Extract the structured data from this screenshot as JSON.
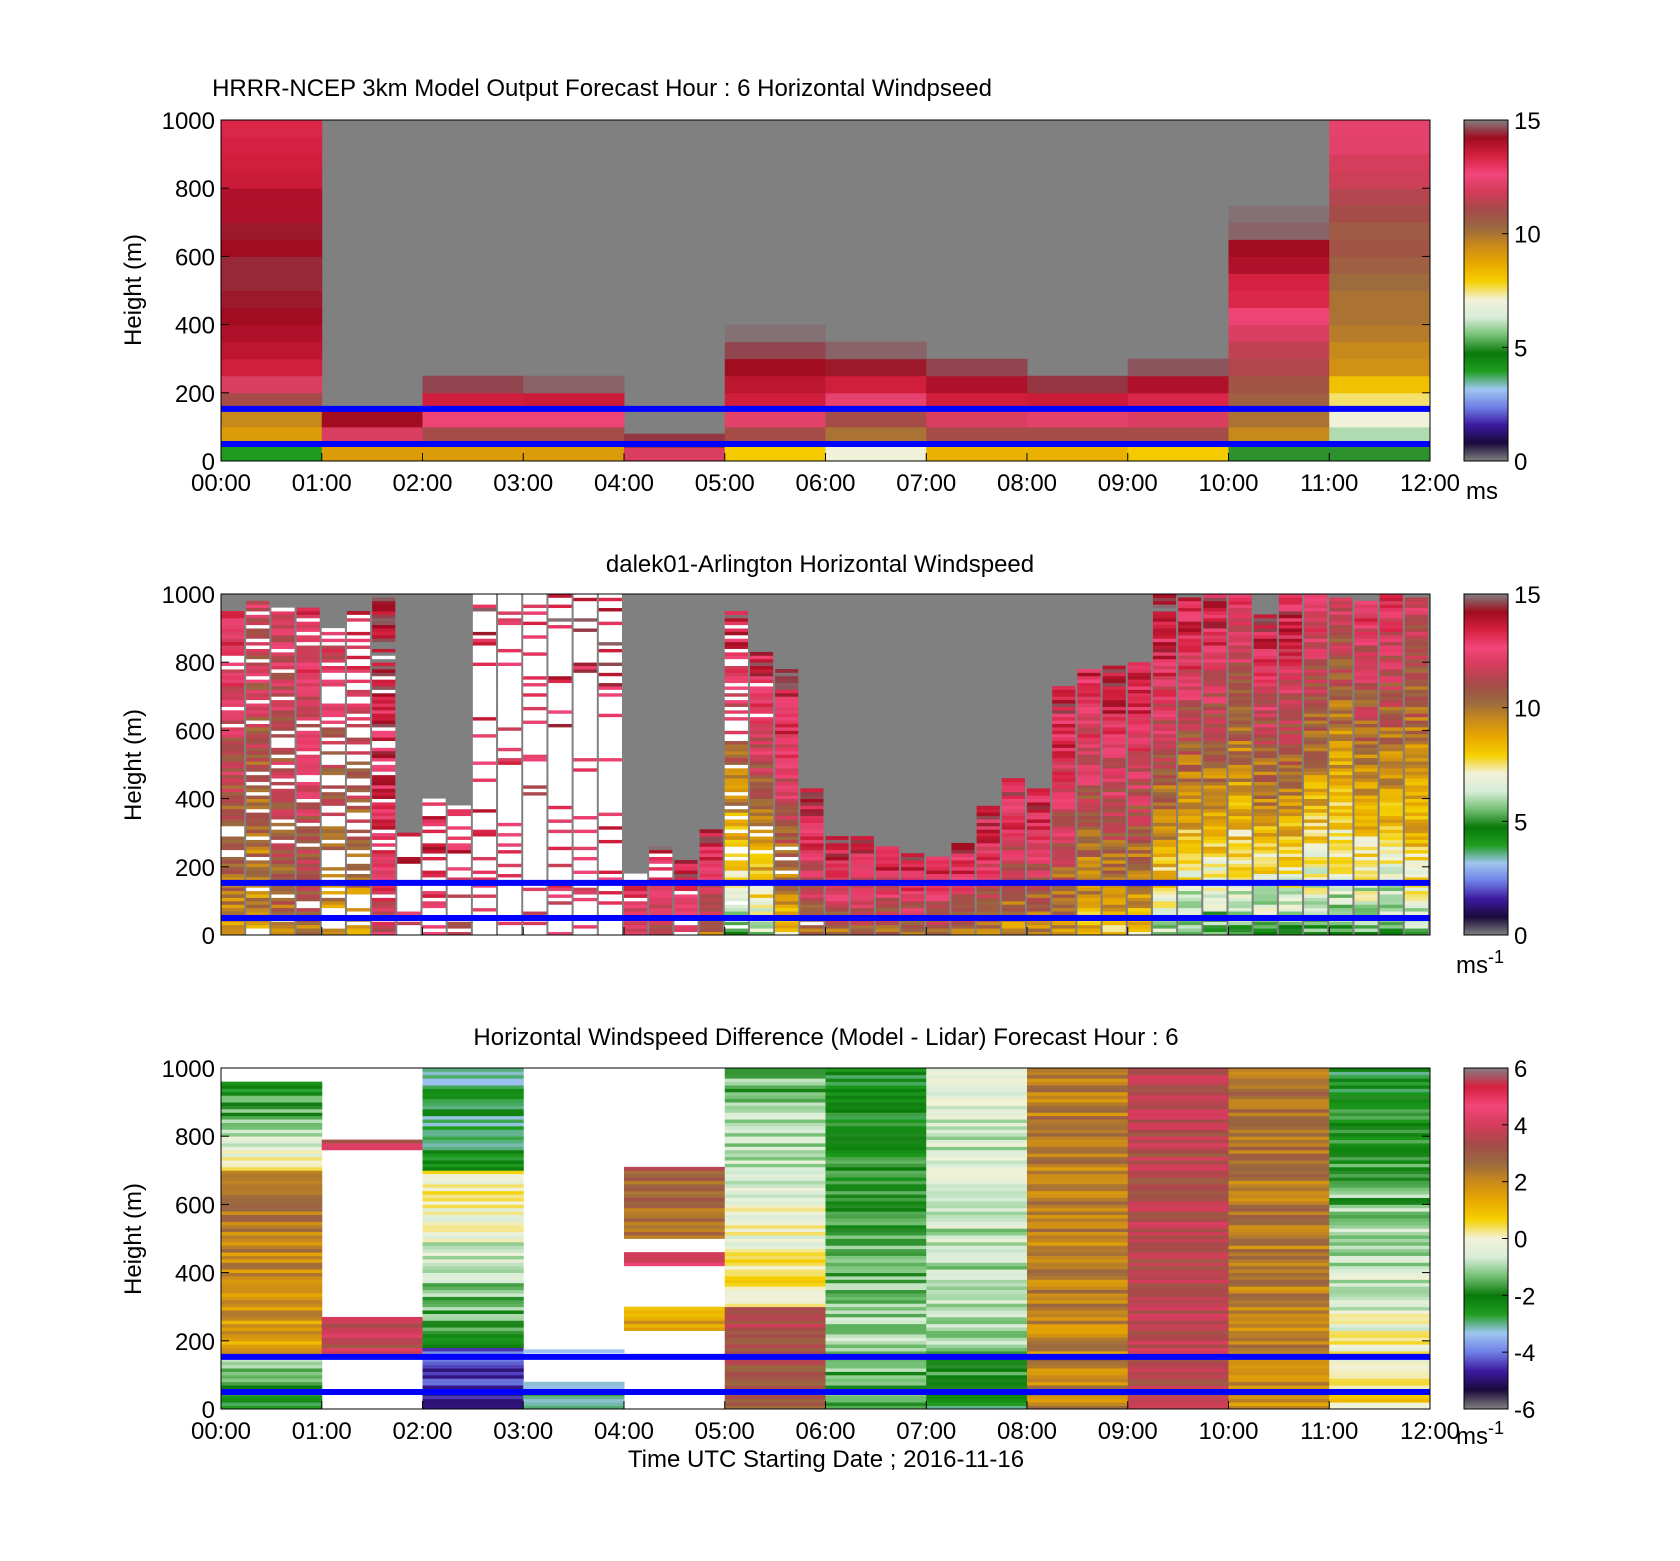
{
  "figure": {
    "xlabel": "Time UTC  Starting Date ; 2016-11-16"
  },
  "colors": {
    "missing": "#808080",
    "no_data": "#ffffff",
    "reference_lines": "#0000ff",
    "speed_scale": [
      "#808080",
      "#1a0a3c",
      "#3c1aa0",
      "#6f7fe6",
      "#9fc6f0",
      "#1f9d1f",
      "#0a7a0a",
      "#74c074",
      "#d8edd8",
      "#f2f2d8",
      "#f5d000",
      "#e8a800",
      "#c98a1a",
      "#9a6840",
      "#a64a4a",
      "#d43c5a",
      "#f2467a",
      "#d62040",
      "#a00c20",
      "#808080"
    ],
    "diff_scale": [
      "#808080",
      "#1a0a3c",
      "#3c1aa0",
      "#6f7fe6",
      "#9fc6f0",
      "#1f9d1f",
      "#0a7a0a",
      "#74c074",
      "#d8edd8",
      "#f2f2d8",
      "#f5d000",
      "#e8a800",
      "#c98a1a",
      "#9a6840",
      "#a64a4a",
      "#d43c5a",
      "#f2467a",
      "#d62040",
      "#808080"
    ]
  },
  "chart_data": [
    {
      "type": "heatmap",
      "title": "HRRR-NCEP 3km Model Output   Forecast Hour : 6 Horizontal Windpseed",
      "ylabel": "Height (m)",
      "x_ticks": [
        "00:00",
        "01:00",
        "02:00",
        "03:00",
        "04:00",
        "05:00",
        "06:00",
        "07:00",
        "08:00",
        "09:00",
        "10:00",
        "11:00",
        "12:00"
      ],
      "x_range_hours": [
        0,
        12
      ],
      "y_ticks": [
        0,
        200,
        400,
        600,
        800,
        1000
      ],
      "ylim": [
        0,
        1000
      ],
      "colorbar": {
        "range": [
          0,
          15
        ],
        "ticks": [
          0,
          5,
          10,
          15
        ],
        "unit": "ms",
        "unit_sup": ""
      },
      "reference_lines_height_m": [
        50,
        153
      ],
      "columns_note": "hourly columns; top_m = highest valid level, speeds listed bottom-to-top in 50 m layers (m/s)",
      "columns": [
        {
          "hour": 0,
          "top_m": 1000,
          "speeds": [
            4,
            9,
            9.5,
            11,
            12,
            13.5,
            13.8,
            14,
            14.2,
            14.3,
            14.4,
            14.4,
            14.2,
            14.3,
            14,
            14,
            13.6,
            13.5,
            13.4,
            13.3
          ]
        },
        {
          "hour": 1,
          "top_m": 150,
          "speeds": [
            9,
            12,
            14.2
          ]
        },
        {
          "hour": 2,
          "top_m": 250,
          "speeds": [
            9,
            11,
            12.5,
            13.5,
            14.6
          ]
        },
        {
          "hour": 3,
          "top_m": 250,
          "speeds": [
            9,
            11,
            12.5,
            13.6,
            14.8
          ]
        },
        {
          "hour": 4,
          "top_m": 80,
          "speeds": [
            12,
            14.5
          ]
        },
        {
          "hour": 5,
          "top_m": 400,
          "speeds": [
            8,
            11,
            12.2,
            13.5,
            13.8,
            14.2,
            14.6,
            14.9
          ]
        },
        {
          "hour": 6,
          "top_m": 350,
          "speeds": [
            7,
            10,
            11,
            12.3,
            13.5,
            14.3,
            14.8
          ]
        },
        {
          "hour": 7,
          "top_m": 300,
          "speeds": [
            8.5,
            11,
            12,
            13.5,
            14,
            14.6
          ]
        },
        {
          "hour": 8,
          "top_m": 250,
          "speeds": [
            8.5,
            11,
            12.2,
            13.6,
            14.5
          ]
        },
        {
          "hour": 9,
          "top_m": 300,
          "speeds": [
            8,
            11,
            12,
            13.3,
            14,
            14.7
          ]
        },
        {
          "hour": 10,
          "top_m": 800,
          "speeds": [
            5,
            9.5,
            10,
            10.5,
            10.8,
            11.2,
            11.5,
            12,
            12.5,
            13.3,
            13.4,
            14,
            14.2,
            14.8,
            14.9,
            15
          ]
        },
        {
          "hour": 11,
          "top_m": 1000,
          "speeds": [
            5,
            6,
            7,
            7.5,
            8.2,
            9.3,
            9.5,
            9.8,
            10,
            10,
            10.2,
            10.5,
            10.8,
            10.6,
            11,
            11.3,
            11.7,
            11.9,
            12.2,
            12.3
          ]
        }
      ]
    },
    {
      "type": "heatmap",
      "title": "dalek01-Arlington  Horizontal Windspeed",
      "ylabel": "Height (m)",
      "x_range_hours": [
        0,
        12
      ],
      "y_ticks": [
        0,
        200,
        400,
        600,
        800,
        1000
      ],
      "ylim": [
        0,
        1000
      ],
      "colorbar": {
        "range": [
          0,
          15
        ],
        "ticks": [
          0,
          5,
          10,
          15
        ],
        "unit": "ms",
        "unit_sup": "-1"
      },
      "reference_lines_height_m": [
        50,
        153
      ],
      "columns_note": "approximate lidar profiles per 15-min bin: valid-data top height (m), speed at bottom and top (m/s), fraction of missing (white) gates",
      "columns": [
        {
          "hour": 0.0,
          "top_m": 950,
          "bottom_speed": 9,
          "top_speed": 13,
          "missing_frac": 0.15
        },
        {
          "hour": 0.25,
          "top_m": 980,
          "bottom_speed": 9,
          "top_speed": 12,
          "missing_frac": 0.15
        },
        {
          "hour": 0.5,
          "top_m": 960,
          "bottom_speed": 10,
          "top_speed": 12,
          "missing_frac": 0.15
        },
        {
          "hour": 0.75,
          "top_m": 960,
          "bottom_speed": 10,
          "top_speed": 13,
          "missing_frac": 0.15
        },
        {
          "hour": 1.0,
          "top_m": 900,
          "bottom_speed": 9,
          "top_speed": 12.5,
          "missing_frac": 0.45
        },
        {
          "hour": 1.25,
          "top_m": 950,
          "bottom_speed": 9,
          "top_speed": 13,
          "missing_frac": 0.5
        },
        {
          "hour": 1.5,
          "top_m": 990,
          "bottom_speed": 12,
          "top_speed": 14.5,
          "missing_frac": 0.1
        },
        {
          "hour": 1.75,
          "top_m": 300,
          "bottom_speed": 12,
          "top_speed": 14,
          "missing_frac": 0.7
        },
        {
          "hour": 2.0,
          "top_m": 400,
          "bottom_speed": 12,
          "top_speed": 13.5,
          "missing_frac": 0.6
        },
        {
          "hour": 2.25,
          "top_m": 380,
          "bottom_speed": 11,
          "top_speed": 14,
          "missing_frac": 0.6
        },
        {
          "hour": 2.5,
          "top_m": 1000,
          "bottom_speed": 12,
          "top_speed": 14,
          "missing_frac": 0.85
        },
        {
          "hour": 2.75,
          "top_m": 1000,
          "bottom_speed": 12,
          "top_speed": 13,
          "missing_frac": 0.85
        },
        {
          "hour": 3.0,
          "top_m": 1000,
          "bottom_speed": 11,
          "top_speed": 13,
          "missing_frac": 0.85
        },
        {
          "hour": 3.25,
          "top_m": 1000,
          "bottom_speed": 12,
          "top_speed": 14,
          "missing_frac": 0.85
        },
        {
          "hour": 3.5,
          "top_m": 1000,
          "bottom_speed": 12,
          "top_speed": 14,
          "missing_frac": 0.85
        },
        {
          "hour": 3.75,
          "top_m": 1000,
          "bottom_speed": 12,
          "top_speed": 14,
          "missing_frac": 0.85
        },
        {
          "hour": 4.0,
          "top_m": 180,
          "bottom_speed": 12,
          "top_speed": 13,
          "missing_frac": 0.3
        },
        {
          "hour": 4.25,
          "top_m": 260,
          "bottom_speed": 11,
          "top_speed": 14,
          "missing_frac": 0.2
        },
        {
          "hour": 4.5,
          "top_m": 220,
          "bottom_speed": 12,
          "top_speed": 14,
          "missing_frac": 0.1
        },
        {
          "hour": 4.75,
          "top_m": 310,
          "bottom_speed": 10,
          "top_speed": 14,
          "missing_frac": 0.05
        },
        {
          "hour": 5.0,
          "top_m": 950,
          "bottom_speed": 5,
          "top_speed": 14,
          "missing_frac": 0.25
        },
        {
          "hour": 5.25,
          "top_m": 830,
          "bottom_speed": 6,
          "top_speed": 14,
          "missing_frac": 0.05
        },
        {
          "hour": 5.5,
          "top_m": 780,
          "bottom_speed": 8,
          "top_speed": 14,
          "missing_frac": 0.05
        },
        {
          "hour": 5.75,
          "top_m": 430,
          "bottom_speed": 10,
          "top_speed": 14,
          "missing_frac": 0.05
        },
        {
          "hour": 6.0,
          "top_m": 290,
          "bottom_speed": 10,
          "top_speed": 14,
          "missing_frac": 0.0
        },
        {
          "hour": 6.25,
          "top_m": 290,
          "bottom_speed": 10,
          "top_speed": 14,
          "missing_frac": 0.0
        },
        {
          "hour": 6.5,
          "top_m": 260,
          "bottom_speed": 10,
          "top_speed": 14,
          "missing_frac": 0.0
        },
        {
          "hour": 6.75,
          "top_m": 240,
          "bottom_speed": 10,
          "top_speed": 14,
          "missing_frac": 0.0
        },
        {
          "hour": 7.0,
          "top_m": 230,
          "bottom_speed": 10,
          "top_speed": 14,
          "missing_frac": 0.0
        },
        {
          "hour": 7.25,
          "top_m": 270,
          "bottom_speed": 10,
          "top_speed": 14,
          "missing_frac": 0.0
        },
        {
          "hour": 7.5,
          "top_m": 390,
          "bottom_speed": 10,
          "top_speed": 14,
          "missing_frac": 0.0
        },
        {
          "hour": 7.75,
          "top_m": 460,
          "bottom_speed": 9,
          "top_speed": 14,
          "missing_frac": 0.0
        },
        {
          "hour": 8.0,
          "top_m": 430,
          "bottom_speed": 9,
          "top_speed": 14,
          "missing_frac": 0.0
        },
        {
          "hour": 8.25,
          "top_m": 730,
          "bottom_speed": 9,
          "top_speed": 14,
          "missing_frac": 0.0
        },
        {
          "hour": 8.5,
          "top_m": 780,
          "bottom_speed": 8,
          "top_speed": 13.5,
          "missing_frac": 0.0
        },
        {
          "hour": 8.75,
          "top_m": 790,
          "bottom_speed": 8,
          "top_speed": 14,
          "missing_frac": 0.0
        },
        {
          "hour": 9.0,
          "top_m": 800,
          "bottom_speed": 8,
          "top_speed": 14,
          "missing_frac": 0.0
        },
        {
          "hour": 9.25,
          "top_m": 1000,
          "bottom_speed": 6,
          "top_speed": 14.5,
          "missing_frac": 0.0
        },
        {
          "hour": 9.5,
          "top_m": 990,
          "bottom_speed": 5,
          "top_speed": 14,
          "missing_frac": 0.0
        },
        {
          "hour": 9.75,
          "top_m": 1000,
          "bottom_speed": 5,
          "top_speed": 14,
          "missing_frac": 0.0
        },
        {
          "hour": 10.0,
          "top_m": 1000,
          "bottom_speed": 5,
          "top_speed": 13,
          "missing_frac": 0.0
        },
        {
          "hour": 10.25,
          "top_m": 940,
          "bottom_speed": 5,
          "top_speed": 14,
          "missing_frac": 0.0
        },
        {
          "hour": 10.5,
          "top_m": 1000,
          "bottom_speed": 5,
          "top_speed": 14,
          "missing_frac": 0.0
        },
        {
          "hour": 10.75,
          "top_m": 1000,
          "bottom_speed": 5,
          "top_speed": 13,
          "missing_frac": 0.0
        },
        {
          "hour": 11.0,
          "top_m": 990,
          "bottom_speed": 5,
          "top_speed": 12,
          "missing_frac": 0.0
        },
        {
          "hour": 11.25,
          "top_m": 980,
          "bottom_speed": 5,
          "top_speed": 13,
          "missing_frac": 0.0
        },
        {
          "hour": 11.5,
          "top_m": 1000,
          "bottom_speed": 5,
          "top_speed": 13,
          "missing_frac": 0.0
        },
        {
          "hour": 11.75,
          "top_m": 990,
          "bottom_speed": 6,
          "top_speed": 12,
          "missing_frac": 0.0
        }
      ]
    },
    {
      "type": "heatmap",
      "title": "Horizontal Windspeed Difference (Model - Lidar) Forecast Hour : 6",
      "ylabel": "Height (m)",
      "x_ticks": [
        "00:00",
        "01:00",
        "02:00",
        "03:00",
        "04:00",
        "05:00",
        "06:00",
        "07:00",
        "08:00",
        "09:00",
        "10:00",
        "11:00",
        "12:00"
      ],
      "x_range_hours": [
        0,
        12
      ],
      "y_ticks": [
        0,
        200,
        400,
        600,
        800,
        1000
      ],
      "ylim": [
        0,
        1000
      ],
      "colorbar": {
        "range": [
          -6,
          6
        ],
        "ticks": [
          -6,
          -4,
          -2,
          0,
          2,
          4,
          6
        ],
        "unit": "ms",
        "unit_sup": "-1"
      },
      "reference_lines_height_m": [
        50,
        153
      ],
      "columns_note": "hourly columns of difference (m/s) as valid segments [bottom_m, top_m, diff_bottom, diff_top]",
      "columns": [
        {
          "hour": 0,
          "segments": [
            [
              0,
              150,
              -2.5,
              -1
            ],
            [
              150,
              700,
              1.5,
              2.5
            ],
            [
              700,
              960,
              0.5,
              -2.5
            ]
          ]
        },
        {
          "hour": 1,
          "segments": [
            [
              150,
              270,
              3.5,
              4
            ],
            [
              760,
              790,
              3.8,
              3.8
            ]
          ]
        },
        {
          "hour": 2,
          "segments": [
            [
              0,
              180,
              -5,
              -4
            ],
            [
              180,
              700,
              -2,
              0.5
            ],
            [
              700,
              1000,
              -2.5,
              -3
            ]
          ]
        },
        {
          "hour": 3,
          "segments": [
            [
              0,
              80,
              -3,
              -3
            ],
            [
              165,
              175,
              -3,
              -3
            ]
          ]
        },
        {
          "hour": 4,
          "segments": [
            [
              230,
              300,
              1.5,
              1.5
            ],
            [
              420,
              460,
              4.5,
              4.5
            ],
            [
              500,
              710,
              2.2,
              3
            ]
          ]
        },
        {
          "hour": 5,
          "segments": [
            [
              0,
              300,
              3,
              3.5
            ],
            [
              300,
              1000,
              0.5,
              -1.5
            ]
          ]
        },
        {
          "hour": 6,
          "segments": [
            [
              0,
              170,
              -2,
              -1
            ],
            [
              170,
              1000,
              -1,
              -2.5
            ]
          ]
        },
        {
          "hour": 7,
          "segments": [
            [
              0,
              180,
              -2.5,
              -1.5
            ],
            [
              180,
              1000,
              -1,
              -0.5
            ]
          ]
        },
        {
          "hour": 8,
          "segments": [
            [
              0,
              1000,
              2,
              2.3
            ]
          ]
        },
        {
          "hour": 9,
          "segments": [
            [
              0,
              1000,
              3.5,
              3.5
            ]
          ]
        },
        {
          "hour": 10,
          "segments": [
            [
              0,
              1000,
              2,
              2.5
            ]
          ]
        },
        {
          "hour": 11,
          "segments": [
            [
              0,
              1000,
              0.5,
              -2.5
            ]
          ]
        }
      ]
    }
  ]
}
